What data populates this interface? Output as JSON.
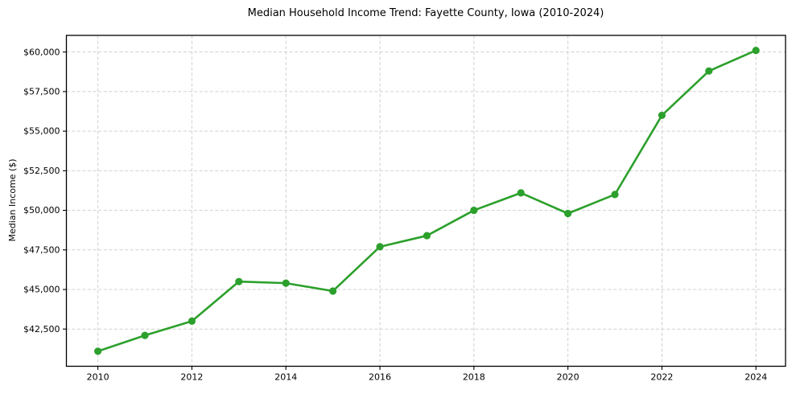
{
  "figure": {
    "background": "#ffffff"
  },
  "chart_data": {
    "type": "line",
    "title": "Median Household Income Trend: Fayette County, Iowa (2010-2024)",
    "xlabel": "",
    "ylabel": "Median Income ($)",
    "x": [
      2010,
      2011,
      2012,
      2013,
      2014,
      2015,
      2016,
      2017,
      2018,
      2019,
      2020,
      2021,
      2022,
      2023,
      2024
    ],
    "values": [
      41100,
      42100,
      43000,
      45500,
      45400,
      44900,
      47700,
      48400,
      50000,
      51100,
      49800,
      51000,
      56000,
      58800,
      60100
    ],
    "xticks": [
      2010,
      2012,
      2014,
      2016,
      2018,
      2020,
      2022,
      2024
    ],
    "xtick_labels": [
      "2010",
      "2012",
      "2014",
      "2016",
      "2018",
      "2020",
      "2022",
      "2024"
    ],
    "ytick_values": [
      42500,
      45000,
      47500,
      50000,
      52500,
      55000,
      57500,
      60000
    ],
    "ytick_labels": [
      "$42,500",
      "$45,000",
      "$47,500",
      "$50,000",
      "$52,500",
      "$55,000",
      "$57,500",
      "$60,000"
    ],
    "xlim": [
      2009.33,
      2024.63
    ],
    "ylim": [
      40150,
      61050
    ],
    "grid": true,
    "grid_color": "#d0d0d0",
    "axis_color": "#000000",
    "line_color": "#2ca02c",
    "marker": "circle",
    "legend_position": "none"
  }
}
